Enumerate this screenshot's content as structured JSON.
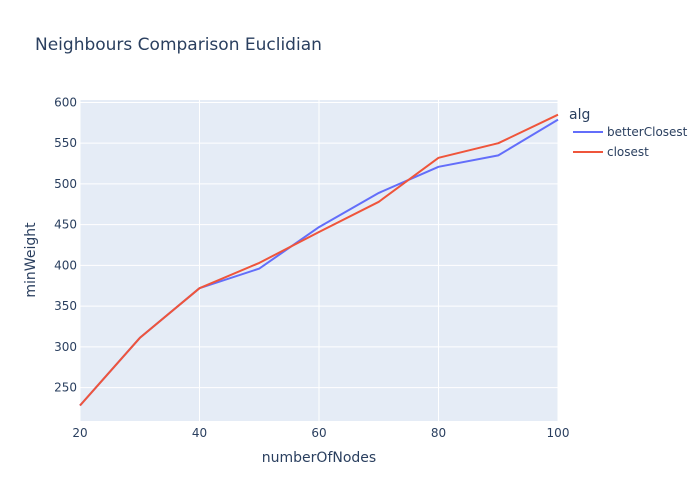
{
  "chart_data": {
    "type": "line",
    "title": "Neighbours Comparison Euclidian",
    "xlabel": "numberOfNodes",
    "ylabel": "minWeight",
    "xlim": [
      20,
      100
    ],
    "ylim": [
      209,
      603
    ],
    "x_ticks": [
      "20",
      "40",
      "60",
      "80",
      "100"
    ],
    "y_ticks": [
      "250",
      "300",
      "350",
      "400",
      "450",
      "500",
      "550",
      "600"
    ],
    "legend_title": "alg",
    "legend_position": "right",
    "grid": true,
    "plot_bg": "#E5ECF6",
    "x": [
      20,
      30,
      40,
      50,
      60,
      70,
      80,
      90,
      100
    ],
    "series": [
      {
        "name": "betterClosest",
        "color": "#636EFA",
        "values": [
          228,
          311,
          372,
          396,
          447,
          489,
          521,
          535,
          579
        ]
      },
      {
        "name": "closest",
        "color": "#EF553B",
        "values": [
          228,
          311,
          372,
          403,
          441,
          478,
          532,
          550,
          585
        ]
      }
    ]
  }
}
